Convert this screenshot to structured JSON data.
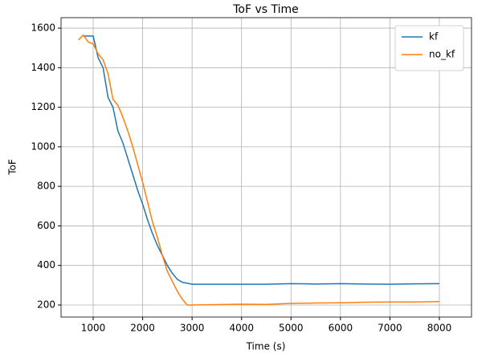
{
  "chart_data": {
    "type": "line",
    "title": "ToF vs Time",
    "x_label": "Time (s)",
    "y_label": "ToF",
    "x": [
      700,
      800,
      900,
      1000,
      1100,
      1200,
      1300,
      1400,
      1500,
      1600,
      1700,
      1800,
      1900,
      2000,
      2100,
      2200,
      2300,
      2400,
      2500,
      2600,
      2700,
      2800,
      2900,
      3000,
      3500,
      4000,
      4500,
      5000,
      5500,
      6000,
      6500,
      7000,
      7500,
      8000
    ],
    "series": [
      {
        "name": "kf",
        "color": "#1f77b4",
        "values": [
          null,
          1560,
          1560,
          1560,
          1450,
          1400,
          1250,
          1200,
          1080,
          1020,
          940,
          860,
          780,
          710,
          630,
          560,
          500,
          450,
          400,
          360,
          330,
          315,
          310,
          305,
          305,
          305,
          305,
          308,
          306,
          308,
          306,
          305,
          307,
          308
        ]
      },
      {
        "name": "no_kf",
        "color": "#ff7f0e",
        "values": [
          1540,
          1565,
          1530,
          1520,
          1470,
          1440,
          1370,
          1240,
          1210,
          1150,
          1080,
          1000,
          910,
          820,
          720,
          620,
          540,
          450,
          370,
          320,
          270,
          230,
          200,
          200,
          202,
          204,
          203,
          208,
          210,
          211,
          214,
          215,
          215,
          217
        ]
      }
    ],
    "xlim": [
      350,
      8650
    ],
    "ylim": [
      139,
      1653
    ],
    "xticks": [
      1000,
      2000,
      3000,
      4000,
      5000,
      6000,
      7000,
      8000
    ],
    "yticks": [
      200,
      400,
      600,
      800,
      1000,
      1200,
      1400,
      1600
    ],
    "grid": true,
    "legend": "upper right"
  }
}
